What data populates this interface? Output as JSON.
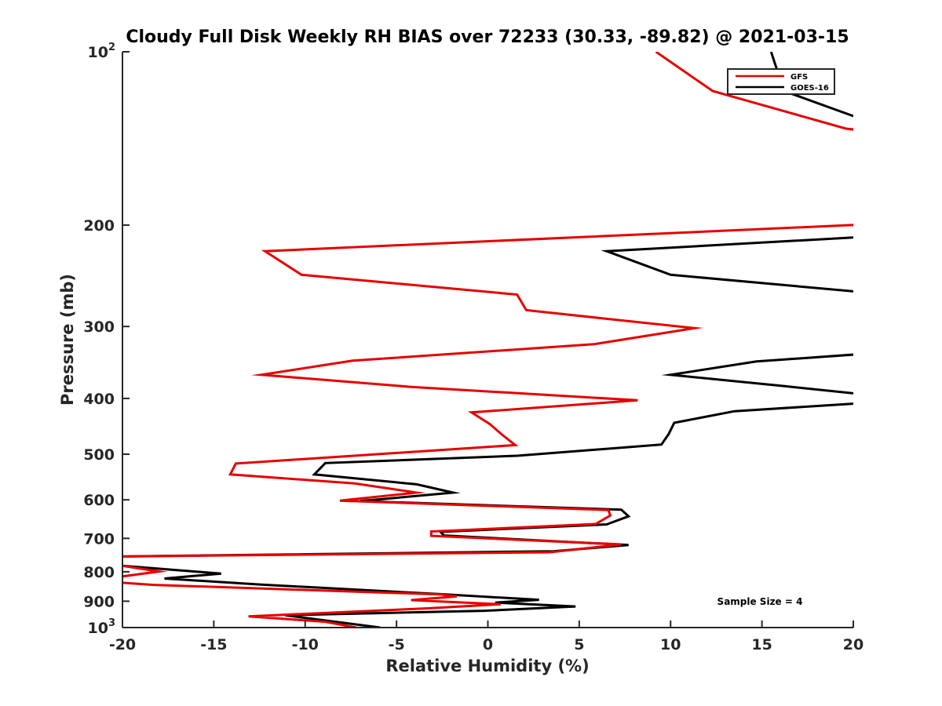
{
  "chart_data": {
    "type": "line",
    "title": "Cloudy Full Disk Weekly RH BIAS over 72233 (30.33, -89.82) @ 2021-03-15",
    "xlabel": "Relative Humidity (%)",
    "ylabel": "Pressure (mb)",
    "xlim": [
      -20,
      20
    ],
    "ylim": [
      100,
      1000
    ],
    "yscale": "log",
    "y_reversed": true,
    "xticks": [
      "-20",
      "-15",
      "-10",
      "-5",
      "0",
      "5",
      "10",
      "15",
      "20"
    ],
    "yticks": [
      {
        "value": 100,
        "base": "10",
        "exp": "2"
      },
      {
        "value": 200,
        "label": "200"
      },
      {
        "value": 300,
        "label": "300"
      },
      {
        "value": 400,
        "label": "400"
      },
      {
        "value": 500,
        "label": "500"
      },
      {
        "value": 600,
        "label": "600"
      },
      {
        "value": 700,
        "label": "700"
      },
      {
        "value": 800,
        "label": "800"
      },
      {
        "value": 900,
        "label": "900"
      },
      {
        "value": 1000,
        "base": "10",
        "exp": "3"
      }
    ],
    "legend_location": "top-right",
    "annotation": "Sample Size = 4",
    "series": [
      {
        "name": "GFS",
        "color": "#e60000",
        "points": [
          [
            9.2,
            100
          ],
          [
            12.3,
            117
          ],
          [
            19.6,
            136
          ],
          [
            20.5,
            137
          ],
          [
            21,
            137
          ],
          [
            21,
            199
          ],
          [
            19.8,
            200
          ],
          [
            -12.2,
            222
          ],
          [
            -10.2,
            244
          ],
          [
            1.6,
            264
          ],
          [
            2.1,
            281
          ],
          [
            11.3,
            302
          ],
          [
            5.8,
            322
          ],
          [
            -7.4,
            344
          ],
          [
            -12.4,
            364
          ],
          [
            -4.2,
            382
          ],
          [
            8.2,
            403
          ],
          [
            -0.9,
            423
          ],
          [
            0.1,
            443
          ],
          [
            0.8,
            463
          ],
          [
            1.5,
            482
          ],
          [
            -13.8,
            519
          ],
          [
            -14.1,
            542
          ],
          [
            -7.3,
            562
          ],
          [
            -3.9,
            583
          ],
          [
            -8.1,
            602
          ],
          [
            6.6,
            625
          ],
          [
            6.7,
            639
          ],
          [
            5.9,
            661
          ],
          [
            -3.1,
            681
          ],
          [
            -3.1,
            693
          ],
          [
            7.3,
            717
          ],
          [
            3.4,
            740
          ],
          [
            -21,
            753
          ],
          [
            -20.5,
            777
          ],
          [
            -18,
            799
          ],
          [
            -20.5,
            819
          ],
          [
            -20.5,
            834
          ],
          [
            -18.3,
            843
          ],
          [
            -2.6,
            876
          ],
          [
            -1.7,
            883
          ],
          [
            -4.2,
            896
          ],
          [
            0.7,
            911
          ],
          [
            -3.3,
            926
          ],
          [
            -13.1,
            956
          ],
          [
            -8.9,
            977
          ],
          [
            -7.2,
            1000
          ]
        ]
      },
      {
        "name": "GOES-16",
        "color": "#000000",
        "points": [
          [
            15.5,
            100
          ],
          [
            16.2,
            117
          ],
          [
            20.5,
            131
          ],
          [
            21,
            131
          ],
          [
            21,
            209
          ],
          [
            20.2,
            210
          ],
          [
            6.5,
            222
          ],
          [
            10,
            244
          ],
          [
            20.2,
            261
          ],
          [
            21,
            262
          ],
          [
            21,
            334
          ],
          [
            20.4,
            335
          ],
          [
            14.7,
            345
          ],
          [
            10,
            364
          ],
          [
            16.3,
            381
          ],
          [
            20.4,
            393
          ],
          [
            21,
            394
          ],
          [
            21,
            407
          ],
          [
            20.3,
            408
          ],
          [
            13.5,
            421
          ],
          [
            10.2,
            441
          ],
          [
            9.9,
            461
          ],
          [
            9.5,
            481
          ],
          [
            1.6,
            503
          ],
          [
            -8.9,
            518
          ],
          [
            -9.5,
            542
          ],
          [
            -3.9,
            564
          ],
          [
            -1.9,
            583
          ],
          [
            -7.0,
            603
          ],
          [
            7.3,
            624
          ],
          [
            7.7,
            641
          ],
          [
            6.5,
            662
          ],
          [
            -2.6,
            682
          ],
          [
            -2.4,
            692
          ],
          [
            7.7,
            719
          ],
          [
            3.6,
            737
          ],
          [
            -21,
            753
          ],
          [
            -20.5,
            779
          ],
          [
            -14.6,
            806
          ],
          [
            -17.7,
            822
          ],
          [
            -12.4,
            842
          ],
          [
            -2.6,
            875
          ],
          [
            2.8,
            895
          ],
          [
            0.4,
            905
          ],
          [
            4.8,
            919
          ],
          [
            -0.2,
            935
          ],
          [
            -11.1,
            952
          ],
          [
            -5.9,
            1000
          ]
        ]
      }
    ]
  }
}
